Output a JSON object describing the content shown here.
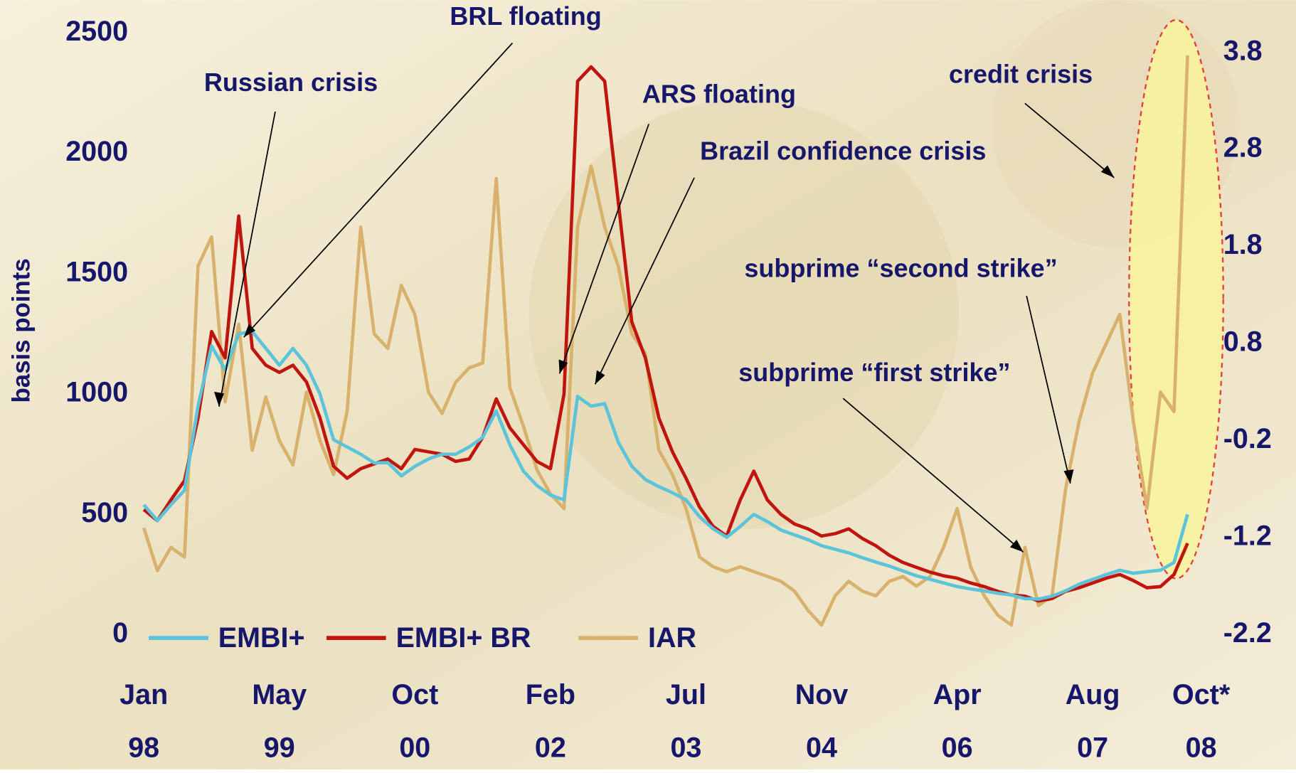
{
  "chart_data": {
    "type": "line",
    "y_label": "basis points",
    "annotations": [
      "BRL floating",
      "Russian crisis",
      "ARS floating",
      "Brazil confidence crisis",
      "credit crisis",
      "subprime “second strike”",
      "subprime “first strike”"
    ],
    "categories": [
      [
        "Jan",
        "98"
      ],
      null,
      null,
      null,
      null,
      null,
      null,
      null,
      null,
      null,
      [
        "May",
        "99"
      ],
      null,
      null,
      null,
      null,
      null,
      null,
      null,
      null,
      null,
      [
        "Oct",
        "00"
      ],
      null,
      null,
      null,
      null,
      null,
      null,
      null,
      null,
      null,
      [
        "Feb",
        "02"
      ],
      null,
      null,
      null,
      null,
      null,
      null,
      null,
      null,
      null,
      [
        "Jul",
        "03"
      ],
      null,
      null,
      null,
      null,
      null,
      null,
      null,
      null,
      null,
      [
        "Nov",
        "04"
      ],
      null,
      null,
      null,
      null,
      null,
      null,
      null,
      null,
      null,
      [
        "Apr",
        "06"
      ],
      null,
      null,
      null,
      null,
      null,
      null,
      null,
      null,
      null,
      [
        "Aug",
        "07"
      ],
      null,
      null,
      null,
      null,
      null,
      null,
      null,
      [
        "Oct*",
        "08"
      ]
    ],
    "series": [
      {
        "name": "EMBI+",
        "color": "#5bc3da",
        "values": [
          540,
          474,
          540,
          600,
          950,
          1200,
          1100,
          1250,
          1260,
          1190,
          1120,
          1190,
          1120,
          1000,
          810,
          780,
          750,
          714,
          715,
          660,
          700,
          730,
          750,
          750,
          780,
          820,
          930,
          790,
          680,
          620,
          580,
          560,
          990,
          950,
          960,
          800,
          700,
          645,
          615,
          590,
          560,
          490,
          440,
          405,
          450,
          500,
          470,
          435,
          415,
          395,
          370,
          355,
          340,
          320,
          302,
          285,
          265,
          245,
          230,
          215,
          200,
          190,
          182,
          172,
          165,
          150,
          148,
          160,
          182,
          210,
          230,
          250,
          268,
          255,
          262,
          268,
          300,
          500,
          null
        ]
      },
      {
        "name": "EMBI+ BR",
        "color": "#c0140f",
        "values": [
          520,
          474,
          560,
          640,
          900,
          1260,
          1150,
          1740,
          1190,
          1120,
          1090,
          1120,
          1050,
          900,
          700,
          650,
          690,
          710,
          730,
          690,
          770,
          760,
          750,
          720,
          730,
          820,
          980,
          860,
          790,
          720,
          690,
          1000,
          2300,
          2360,
          2300,
          1800,
          1300,
          1150,
          900,
          760,
          650,
          530,
          450,
          410,
          560,
          680,
          560,
          500,
          460,
          440,
          410,
          420,
          440,
          400,
          370,
          330,
          300,
          280,
          260,
          245,
          235,
          215,
          200,
          180,
          165,
          160,
          140,
          150,
          180,
          195,
          215,
          235,
          250,
          225,
          195,
          200,
          250,
          380,
          null
        ]
      },
      {
        "name": "IAR",
        "color": "#d8b26c",
        "axis": "y2",
        "values": [
          -1.1,
          -1.54,
          -1.3,
          -1.4,
          1.6,
          1.9,
          0.2,
          1.0,
          -0.3,
          0.25,
          -0.2,
          -0.45,
          0.3,
          -0.2,
          -0.55,
          0.1,
          2.0,
          0.9,
          0.75,
          1.4,
          1.1,
          0.3,
          0.08,
          0.4,
          0.55,
          0.6,
          2.5,
          0.35,
          -0.05,
          -0.5,
          -0.75,
          -0.9,
          2.0,
          2.63,
          2.0,
          1.6,
          0.9,
          0.7,
          -0.3,
          -0.55,
          -0.9,
          -1.4,
          -1.5,
          -1.55,
          -1.5,
          -1.55,
          -1.6,
          -1.65,
          -1.75,
          -1.95,
          -2.1,
          -1.8,
          -1.65,
          -1.75,
          -1.8,
          -1.65,
          -1.6,
          -1.7,
          -1.6,
          -1.3,
          -0.9,
          -1.5,
          -1.8,
          -2.0,
          -2.1,
          -1.3,
          -1.9,
          -1.8,
          -0.7,
          0.0,
          0.5,
          0.8,
          1.1,
          0.0,
          -0.9,
          0.3,
          0.1,
          3.77,
          null
        ]
      }
    ],
    "ylim": [
      0,
      2500
    ],
    "yticks": [
      0,
      500,
      1000,
      1500,
      2000,
      2500
    ],
    "y2lim": [
      -2.2,
      4.0
    ],
    "y2ticks": [
      -2.2,
      -1.2,
      -0.2,
      0.8,
      1.8,
      2.8,
      3.8
    ],
    "grid": false
  }
}
